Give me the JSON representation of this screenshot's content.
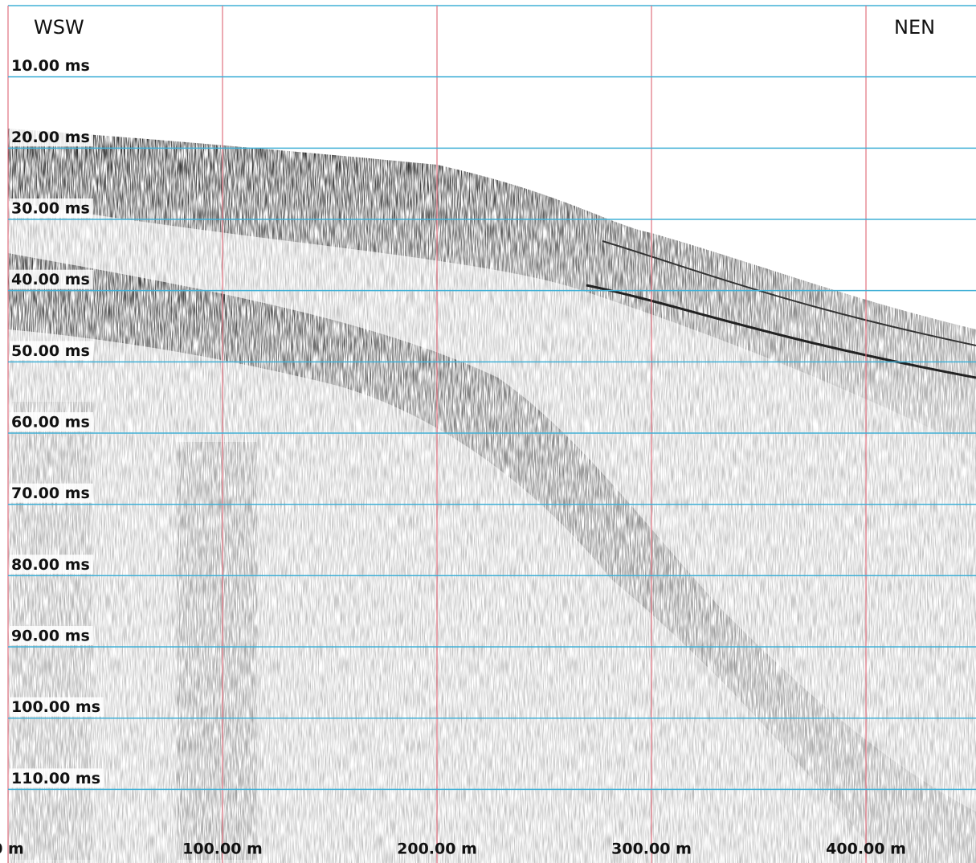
{
  "chart_data": {
    "type": "seismic",
    "annotations": [
      "WSW",
      "NEN"
    ],
    "xlim": [
      0,
      451.3
    ],
    "ylim": [
      0,
      116.5
    ],
    "y_inverted": true,
    "xticks": [
      {
        "value": 0,
        "label": "0 m"
      },
      {
        "value": 100,
        "label": "100.00 m"
      },
      {
        "value": 200,
        "label": "200.00 m"
      },
      {
        "value": 300,
        "label": "300.00 m"
      },
      {
        "value": 400,
        "label": "400.00 m"
      }
    ],
    "yticks": [
      {
        "value": 10,
        "label": "10.00 ms"
      },
      {
        "value": 20,
        "label": "20.00 ms"
      },
      {
        "value": 30,
        "label": "30.00 ms"
      },
      {
        "value": 40,
        "label": "40.00 ms"
      },
      {
        "value": 50,
        "label": "50.00 ms"
      },
      {
        "value": 60,
        "label": "60.00 ms"
      },
      {
        "value": 70,
        "label": "70.00 ms"
      },
      {
        "value": 80,
        "label": "80.00 ms"
      },
      {
        "value": 90,
        "label": "90.00 ms"
      },
      {
        "value": 100,
        "label": "100.00 ms"
      },
      {
        "value": 110,
        "label": "110.00 ms"
      }
    ],
    "grid": true,
    "grid_colors": {
      "x": "#e0707e",
      "y": "#41b0d6"
    }
  }
}
